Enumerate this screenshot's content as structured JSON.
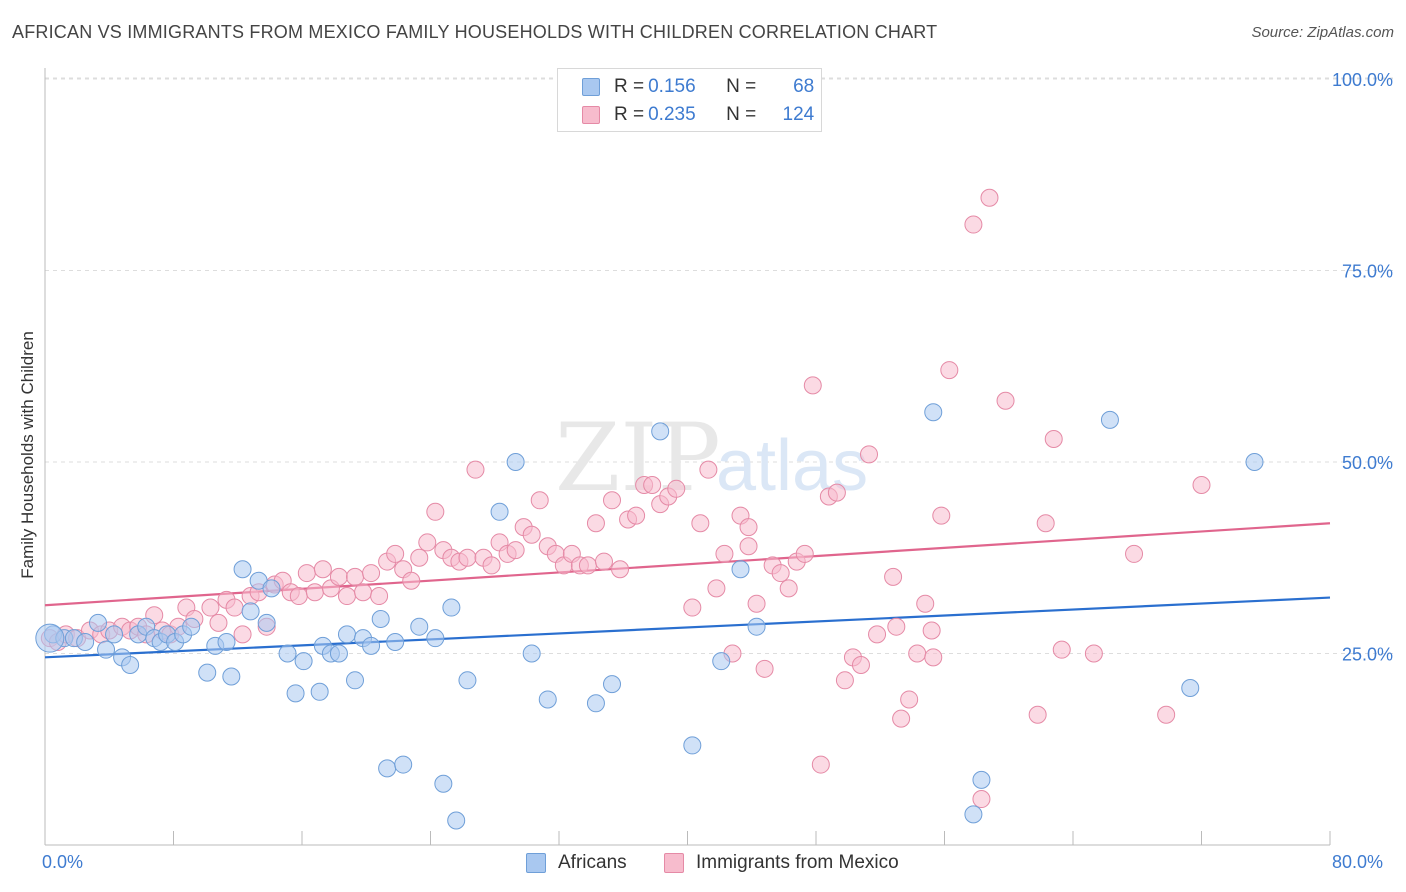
{
  "title": "AFRICAN VS IMMIGRANTS FROM MEXICO FAMILY HOUSEHOLDS WITH CHILDREN CORRELATION CHART",
  "source": "Source: ZipAtlas.com",
  "watermark": {
    "zip": "ZIP",
    "atlas": "atlas"
  },
  "legend": {
    "africans": {
      "r_label": "R =",
      "r_value": "0.156",
      "n_label": "N =",
      "n_value": "68"
    },
    "mexico": {
      "r_label": "R =",
      "r_value": "0.235",
      "n_label": "N =",
      "n_value": "124"
    }
  },
  "bottom_legend": {
    "africans": "Africans",
    "mexico": "Immigrants from Mexico"
  },
  "colors": {
    "africans_fill": "#a9c8f0",
    "africans_stroke": "#6f9fd8",
    "africans_line": "#2a6fcf",
    "mexico_fill": "#f7bccd",
    "mexico_stroke": "#e58aa6",
    "mexico_line": "#e0658d",
    "tick_label": "#3e7bd0",
    "grid": "#dddddd"
  },
  "chart_data": {
    "type": "scatter",
    "title": "AFRICAN VS IMMIGRANTS FROM MEXICO FAMILY HOUSEHOLDS WITH CHILDREN CORRELATION CHART",
    "xlabel": "",
    "ylabel": "Family Households with Children",
    "xlim": [
      0,
      80
    ],
    "ylim": [
      0,
      100
    ],
    "x_tick_labels": [
      "0.0%",
      "80.0%"
    ],
    "y_ticks": [
      25,
      50,
      75,
      100
    ],
    "y_tick_labels": [
      "25.0%",
      "50.0%",
      "75.0%",
      "100.0%"
    ],
    "grid": true,
    "legend_position": "top-center",
    "series": [
      {
        "name": "Africans",
        "trend": {
          "x0": 0,
          "y0": 24.5,
          "x1": 80,
          "y1": 32.3
        },
        "points": [
          [
            0.5,
            27.5
          ],
          [
            1.2,
            27.0
          ],
          [
            1.8,
            27.0
          ],
          [
            2.5,
            26.5
          ],
          [
            3.3,
            29.0
          ],
          [
            3.8,
            25.5
          ],
          [
            4.3,
            27.5
          ],
          [
            4.8,
            24.5
          ],
          [
            5.3,
            23.5
          ],
          [
            5.8,
            27.5
          ],
          [
            6.3,
            28.5
          ],
          [
            6.8,
            27.0
          ],
          [
            7.2,
            26.5
          ],
          [
            7.6,
            27.5
          ],
          [
            8.1,
            26.5
          ],
          [
            8.6,
            27.5
          ],
          [
            9.1,
            28.5
          ],
          [
            10.1,
            22.5
          ],
          [
            10.6,
            26.0
          ],
          [
            11.6,
            22.0
          ],
          [
            11.3,
            26.5
          ],
          [
            12.3,
            36.0
          ],
          [
            12.8,
            30.5
          ],
          [
            13.3,
            34.5
          ],
          [
            13.8,
            29.0
          ],
          [
            14.1,
            33.5
          ],
          [
            15.1,
            25.0
          ],
          [
            15.6,
            19.8
          ],
          [
            16.1,
            24.0
          ],
          [
            17.1,
            20.0
          ],
          [
            17.3,
            26.0
          ],
          [
            17.8,
            25.0
          ],
          [
            18.3,
            25.0
          ],
          [
            18.8,
            27.5
          ],
          [
            19.3,
            21.5
          ],
          [
            19.8,
            27.0
          ],
          [
            20.3,
            26.0
          ],
          [
            20.9,
            29.5
          ],
          [
            21.3,
            10.0
          ],
          [
            21.8,
            26.5
          ],
          [
            22.3,
            10.5
          ],
          [
            23.3,
            28.5
          ],
          [
            24.3,
            27.0
          ],
          [
            24.8,
            8.0
          ],
          [
            25.3,
            31.0
          ],
          [
            25.6,
            3.2
          ],
          [
            26.3,
            21.5
          ],
          [
            28.3,
            43.5
          ],
          [
            29.3,
            50.0
          ],
          [
            30.3,
            25.0
          ],
          [
            31.3,
            19.0
          ],
          [
            34.3,
            18.5
          ],
          [
            35.3,
            21.0
          ],
          [
            38.3,
            54.0
          ],
          [
            40.3,
            13.0
          ],
          [
            42.1,
            24.0
          ],
          [
            43.3,
            36.0
          ],
          [
            44.3,
            28.5
          ],
          [
            55.3,
            56.5
          ],
          [
            57.8,
            4.0
          ],
          [
            58.3,
            8.5
          ],
          [
            66.3,
            55.5
          ],
          [
            71.3,
            20.5
          ],
          [
            75.3,
            50.0
          ],
          [
            0.3,
            27.0
          ]
        ]
      },
      {
        "name": "Immigrants from Mexico",
        "trend": {
          "x0": 0,
          "y0": 31.3,
          "x1": 80,
          "y1": 42.0
        },
        "points": [
          [
            0.3,
            27.0
          ],
          [
            0.8,
            26.5
          ],
          [
            1.3,
            27.5
          ],
          [
            2.0,
            27.0
          ],
          [
            2.8,
            28.0
          ],
          [
            3.5,
            27.5
          ],
          [
            4.0,
            28.0
          ],
          [
            4.8,
            28.5
          ],
          [
            5.3,
            28.0
          ],
          [
            5.8,
            28.5
          ],
          [
            6.3,
            27.5
          ],
          [
            6.8,
            30.0
          ],
          [
            7.3,
            28.0
          ],
          [
            7.8,
            27.5
          ],
          [
            8.3,
            28.5
          ],
          [
            8.8,
            31.0
          ],
          [
            9.3,
            29.5
          ],
          [
            10.3,
            31.0
          ],
          [
            10.8,
            29.0
          ],
          [
            11.3,
            32.0
          ],
          [
            11.8,
            31.0
          ],
          [
            12.3,
            27.5
          ],
          [
            12.8,
            32.5
          ],
          [
            13.3,
            33.0
          ],
          [
            13.8,
            28.5
          ],
          [
            14.3,
            34.0
          ],
          [
            14.8,
            34.5
          ],
          [
            15.3,
            33.0
          ],
          [
            15.8,
            32.5
          ],
          [
            16.3,
            35.5
          ],
          [
            16.8,
            33.0
          ],
          [
            17.3,
            36.0
          ],
          [
            17.8,
            33.5
          ],
          [
            18.3,
            35.0
          ],
          [
            18.8,
            32.5
          ],
          [
            19.3,
            35.0
          ],
          [
            19.8,
            33.0
          ],
          [
            20.3,
            35.5
          ],
          [
            20.8,
            32.5
          ],
          [
            21.3,
            37.0
          ],
          [
            21.8,
            38.0
          ],
          [
            22.3,
            36.0
          ],
          [
            22.8,
            34.5
          ],
          [
            23.3,
            37.5
          ],
          [
            23.8,
            39.5
          ],
          [
            24.3,
            43.5
          ],
          [
            24.8,
            38.5
          ],
          [
            25.3,
            37.5
          ],
          [
            25.8,
            37.0
          ],
          [
            26.3,
            37.5
          ],
          [
            26.8,
            49.0
          ],
          [
            27.3,
            37.5
          ],
          [
            27.8,
            36.5
          ],
          [
            28.3,
            39.5
          ],
          [
            28.8,
            38.0
          ],
          [
            29.3,
            38.5
          ],
          [
            29.8,
            41.5
          ],
          [
            30.3,
            40.5
          ],
          [
            30.8,
            45.0
          ],
          [
            31.3,
            39.0
          ],
          [
            31.8,
            38.0
          ],
          [
            32.3,
            36.5
          ],
          [
            32.8,
            38.0
          ],
          [
            33.3,
            36.5
          ],
          [
            33.8,
            36.5
          ],
          [
            34.3,
            42.0
          ],
          [
            34.8,
            37.0
          ],
          [
            35.3,
            45.0
          ],
          [
            35.8,
            36.0
          ],
          [
            36.3,
            42.5
          ],
          [
            36.8,
            43.0
          ],
          [
            37.3,
            47.0
          ],
          [
            37.8,
            47.0
          ],
          [
            38.3,
            44.5
          ],
          [
            38.8,
            45.5
          ],
          [
            39.3,
            46.5
          ],
          [
            40.3,
            31.0
          ],
          [
            40.8,
            42.0
          ],
          [
            41.3,
            49.0
          ],
          [
            41.8,
            33.5
          ],
          [
            42.3,
            38.0
          ],
          [
            42.8,
            25.0
          ],
          [
            43.3,
            43.0
          ],
          [
            43.8,
            41.5
          ],
          [
            44.3,
            31.5
          ],
          [
            44.8,
            23.0
          ],
          [
            45.3,
            36.5
          ],
          [
            45.8,
            35.5
          ],
          [
            46.3,
            33.5
          ],
          [
            46.8,
            37.0
          ],
          [
            47.3,
            38.0
          ],
          [
            47.8,
            60.0
          ],
          [
            48.3,
            10.5
          ],
          [
            48.8,
            45.5
          ],
          [
            49.3,
            46.0
          ],
          [
            49.8,
            21.5
          ],
          [
            50.3,
            24.5
          ],
          [
            50.8,
            23.5
          ],
          [
            51.3,
            51.0
          ],
          [
            51.8,
            27.5
          ],
          [
            52.8,
            35.0
          ],
          [
            53.3,
            16.5
          ],
          [
            53.8,
            19.0
          ],
          [
            54.3,
            25.0
          ],
          [
            54.8,
            31.5
          ],
          [
            55.3,
            24.5
          ],
          [
            55.8,
            43.0
          ],
          [
            56.3,
            62.0
          ],
          [
            57.8,
            81.0
          ],
          [
            58.3,
            6.0
          ],
          [
            58.8,
            84.5
          ],
          [
            59.8,
            58.0
          ],
          [
            61.8,
            17.0
          ],
          [
            62.3,
            42.0
          ],
          [
            62.8,
            53.0
          ],
          [
            63.3,
            25.5
          ],
          [
            65.3,
            25.0
          ],
          [
            67.8,
            38.0
          ],
          [
            69.8,
            17.0
          ],
          [
            72.0,
            47.0
          ],
          [
            53.0,
            28.5
          ],
          [
            55.2,
            28.0
          ],
          [
            43.8,
            39.0
          ]
        ]
      }
    ]
  }
}
